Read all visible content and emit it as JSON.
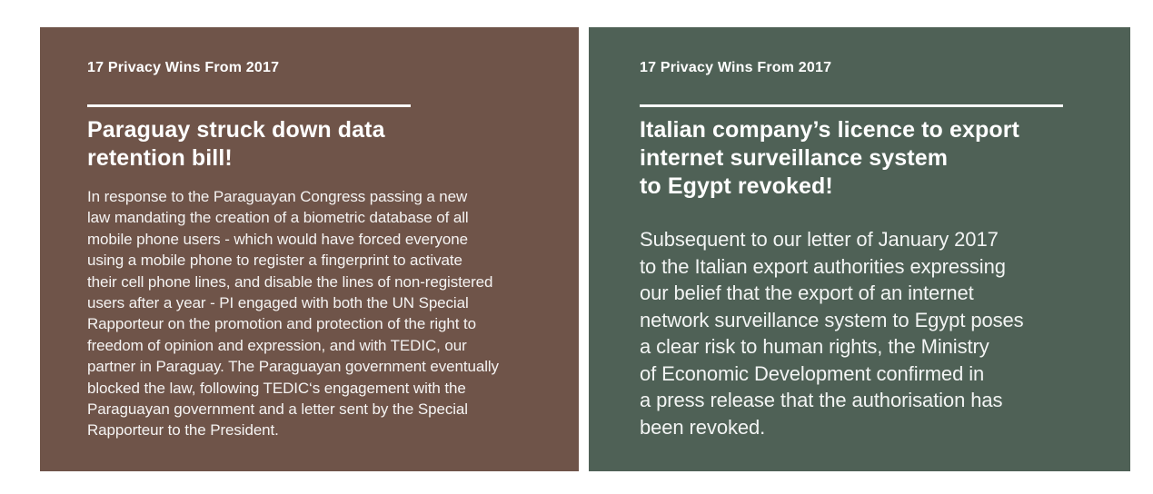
{
  "page": {
    "background": "#ffffff"
  },
  "colors": {
    "card_paraguay_background": "#6f5449",
    "card_italy_background": "#4f6156",
    "text": "#ffffff"
  },
  "cards": [
    {
      "id": "paraguay",
      "kicker": "17 Privacy Wins From 2017",
      "title": "Paraguay struck down data\nretention bill!",
      "body": "In response to the Paraguayan Congress passing a new\nlaw mandating the creation of a biometric database of all\nmobile phone users - which would have forced everyone\nusing a mobile phone to register a fingerprint to activate\ntheir cell phone lines, and disable the lines of non-registered\nusers after a year - PI engaged with both the UN Special\nRapporteur on the promotion and protection of the right to\nfreedom of opinion and expression, and with TEDIC, our\npartner in Paraguay. The Paraguayan government eventually\nblocked the law, following TEDIC‘s engagement with the\nParaguayan government and a letter sent by the Special\nRapporteur to the President."
    },
    {
      "id": "italy",
      "kicker": "17 Privacy Wins From 2017",
      "title": "Italian company’s licence to export\ninternet surveillance system\nto Egypt revoked!",
      "body": "Subsequent to our letter of January 2017\nto the Italian export authorities expressing\nour belief that the export of an internet\nnetwork surveillance system to Egypt poses\na clear risk to human rights, the Ministry\nof Economic Development confirmed in\na press release that the authorisation has\nbeen revoked."
    }
  ]
}
